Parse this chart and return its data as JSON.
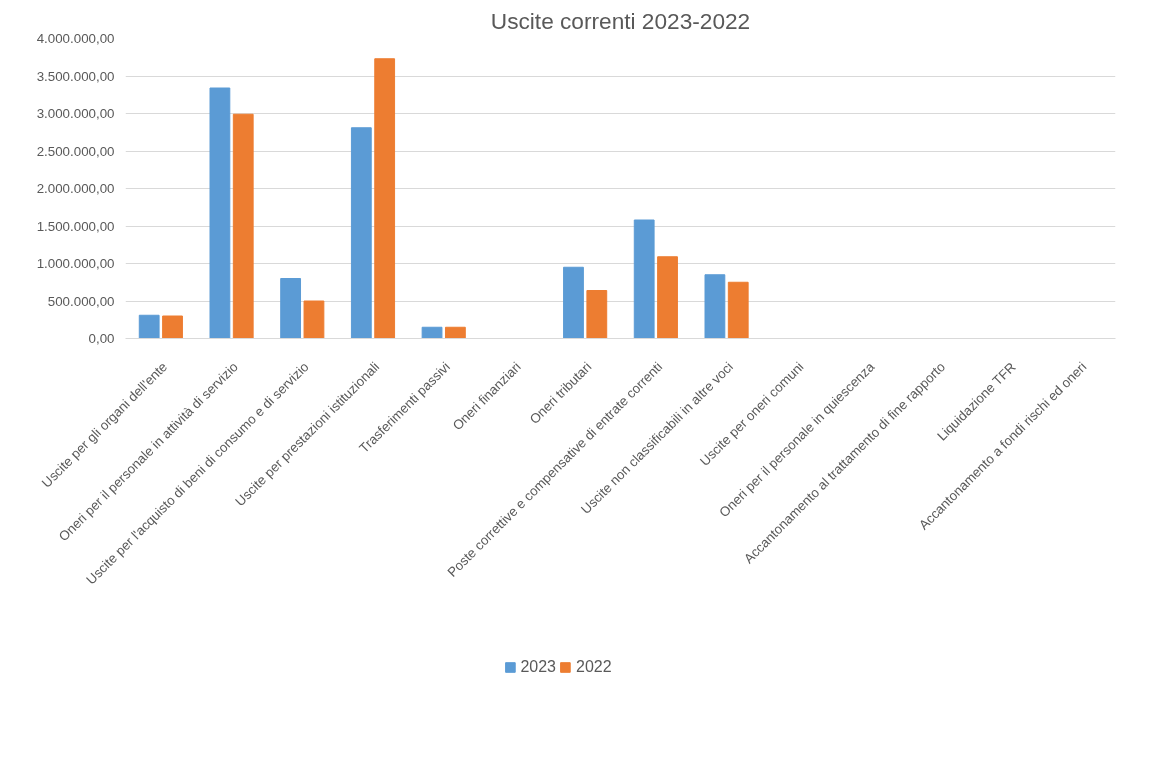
{
  "chart_data": {
    "type": "bar",
    "title": "Uscite correnti 2023-2022",
    "categories": [
      "Uscite per gli organi dell'ente",
      "Oneri per il personale in attività di servizio",
      "Uscite per l'acquisto di beni di consumo e di servizio",
      "Uscite per prestazioni istituzionali",
      "Trasferimenti passivi",
      "Oneri finanziari",
      "Oneri tributari",
      "Poste correttive e compensative di entrate correnti",
      "Uscite non classificabili in altre voci",
      "Uscite per oneri comuni",
      "Oneri per il personale in quiescenza",
      "Accantonamento al trattamento di fine rapporto",
      "Liquidazione TFR",
      "Accantonamento a fondi rischi ed oneri"
    ],
    "series": [
      {
        "name": "2023",
        "color": "#5b9bd5",
        "values": [
          310000,
          3340000,
          800000,
          2810000,
          150000,
          0,
          950000,
          1580000,
          850000,
          0,
          0,
          0,
          0,
          0
        ]
      },
      {
        "name": "2022",
        "color": "#ed7d31",
        "values": [
          300000,
          2990000,
          500000,
          3730000,
          150000,
          0,
          640000,
          1090000,
          750000,
          0,
          0,
          0,
          0,
          0
        ]
      }
    ],
    "ylim": [
      0,
      4000000
    ],
    "yticks": [
      {
        "value": 0,
        "label": "0,00"
      },
      {
        "value": 500000,
        "label": "500.000,00"
      },
      {
        "value": 1000000,
        "label": "1.000.000,00"
      },
      {
        "value": 1500000,
        "label": "1.500.000,00"
      },
      {
        "value": 2000000,
        "label": "2.000.000,00"
      },
      {
        "value": 2500000,
        "label": "2.500.000,00"
      },
      {
        "value": 3000000,
        "label": "3.000.000,00"
      },
      {
        "value": 3500000,
        "label": "3.500.000,00"
      },
      {
        "value": 4000000,
        "label": "4.000.000,00"
      }
    ],
    "grid": "y",
    "legend": "bottom"
  }
}
